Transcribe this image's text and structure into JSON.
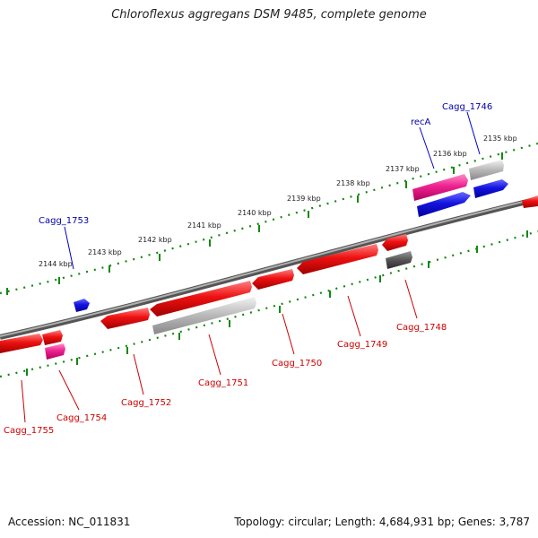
{
  "title": "Chloroflexus aggregans DSM 9485, complete genome",
  "accession_text": "Accession: NC_011831",
  "summary_text": "Topology: circular; Length: 4,684,931 bp; Genes: 3,787",
  "colors": {
    "forward_gene": "#ee1111",
    "reverse_gene": "#ee1111",
    "named_gene": "#e8208a",
    "hypothetical_gene": "#1111dd",
    "pseudo_gene": "#aaaaaa",
    "dark_gene": "#555555",
    "backbone": "#888888",
    "tick": "#118811",
    "label_red": "#cc0000",
    "label_blue": "#0000aa"
  },
  "kbp_labels": [
    "2135 kbp",
    "2136 kbp",
    "2137 kbp",
    "2138 kbp",
    "2139 kbp",
    "2140 kbp",
    "2141 kbp",
    "2142 kbp",
    "2143 kbp",
    "2144 kbp"
  ],
  "gene_labels": {
    "top": [
      "Cagg_1753",
      "recA",
      "Cagg_1746"
    ],
    "bottom": [
      "Cagg_1748",
      "Cagg_1749",
      "Cagg_1750",
      "Cagg_1751",
      "Cagg_1752",
      "Cagg_1754",
      "Cagg_1755"
    ]
  }
}
